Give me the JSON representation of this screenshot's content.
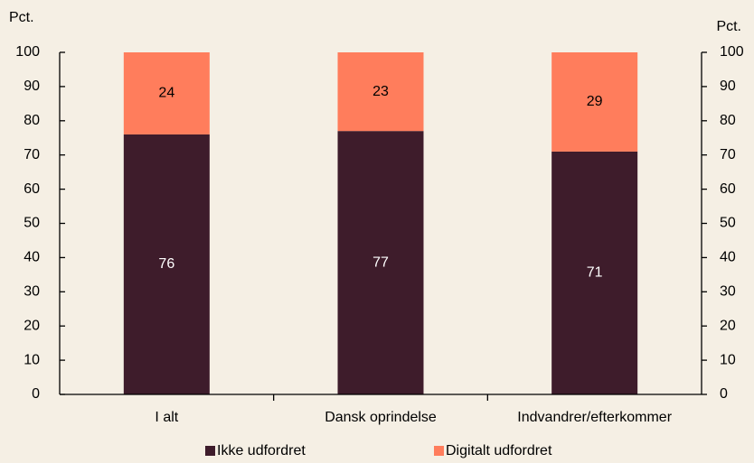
{
  "chart_data": {
    "type": "stacked_bar",
    "y_label": "Pct.",
    "y2_label": "Pct.",
    "categories": [
      "I alt",
      "Dansk oprindelse",
      "Indvandrer/efterkommer"
    ],
    "series": [
      {
        "name": "Ikke udfordret",
        "color": "#3e1c2b",
        "values": [
          76,
          77,
          71
        ]
      },
      {
        "name": "Digitalt udfordret",
        "color": "#ff7d5c",
        "values": [
          24,
          23,
          29
        ]
      }
    ],
    "ylim": [
      0,
      100
    ],
    "yticks": [
      0,
      10,
      20,
      30,
      40,
      50,
      60,
      70,
      80,
      90,
      100
    ],
    "y2lim": [
      0,
      100
    ],
    "y2ticks": [
      0,
      10,
      20,
      30,
      40,
      50,
      60,
      70,
      80,
      90,
      100
    ],
    "legend": "bottom"
  }
}
